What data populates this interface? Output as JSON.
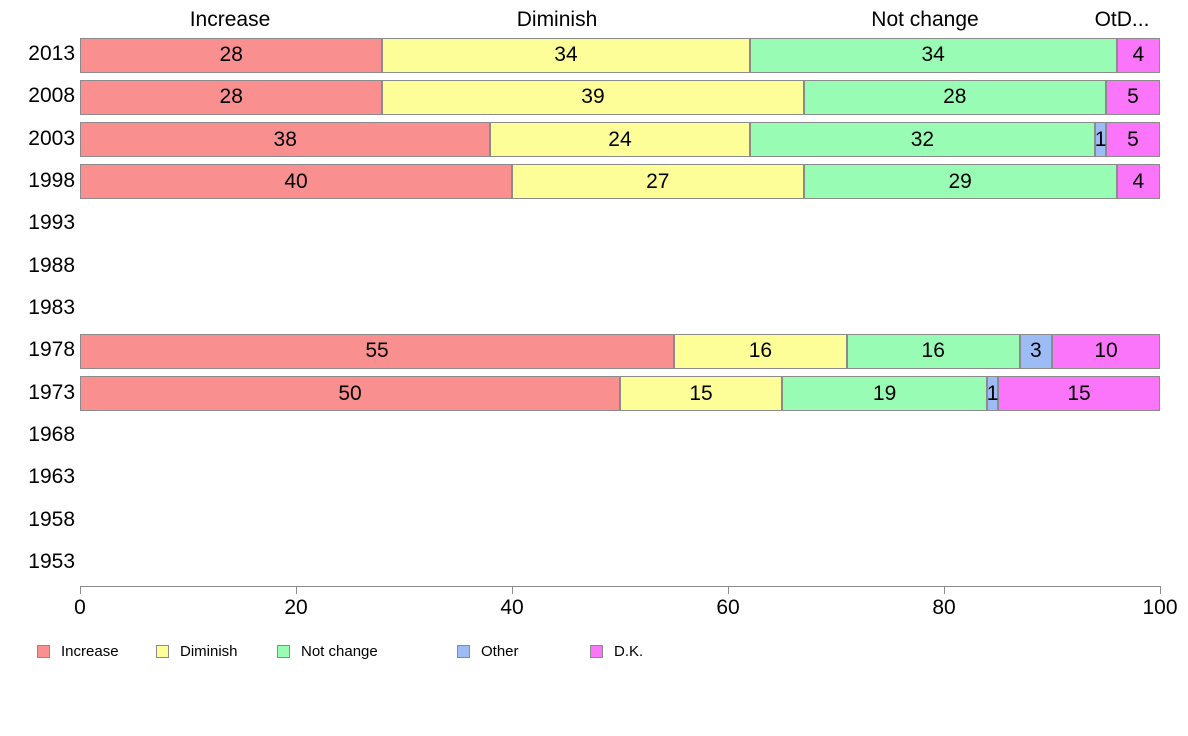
{
  "chart_data": {
    "type": "bar",
    "orientation": "horizontal",
    "stacked": true,
    "title": "",
    "xlabel": "",
    "ylabel": "",
    "xlim": [
      0,
      100
    ],
    "x_ticks": [
      "0",
      "20",
      "40",
      "60",
      "80",
      "100"
    ],
    "grid": false,
    "legend_position": "bottom",
    "categories": [
      "2013",
      "2008",
      "2003",
      "1998",
      "1993",
      "1988",
      "1983",
      "1978",
      "1973",
      "1968",
      "1963",
      "1958",
      "1953"
    ],
    "series": [
      {
        "name": "Increase",
        "color": "#fa8f8f",
        "values": [
          28,
          28,
          38,
          40,
          null,
          null,
          null,
          55,
          50,
          null,
          null,
          null,
          null
        ]
      },
      {
        "name": "Diminish",
        "color": "#fefe99",
        "values": [
          34,
          39,
          24,
          27,
          null,
          null,
          null,
          16,
          15,
          null,
          null,
          null,
          null
        ]
      },
      {
        "name": "Not change",
        "color": "#99fcb5",
        "values": [
          34,
          28,
          32,
          29,
          null,
          null,
          null,
          16,
          19,
          null,
          null,
          null,
          null
        ]
      },
      {
        "name": "Other",
        "color": "#9dbcf5",
        "values": [
          0,
          0,
          1,
          0,
          null,
          null,
          null,
          3,
          1,
          null,
          null,
          null,
          null
        ]
      },
      {
        "name": "D.K.",
        "color": "#fb75fb",
        "values": [
          4,
          5,
          5,
          4,
          null,
          null,
          null,
          10,
          15,
          null,
          null,
          null,
          null
        ]
      }
    ],
    "column_headers": [
      "Increase",
      "Diminish",
      "Not change",
      "OtD..."
    ],
    "legend_labels": [
      "Increase",
      "Diminish",
      "Not change",
      "Other",
      "D.K."
    ],
    "colors": {
      "border": "#8b8b8b",
      "axis": "#8b8b8b",
      "text": "#000000",
      "background": "#ffffff"
    }
  }
}
